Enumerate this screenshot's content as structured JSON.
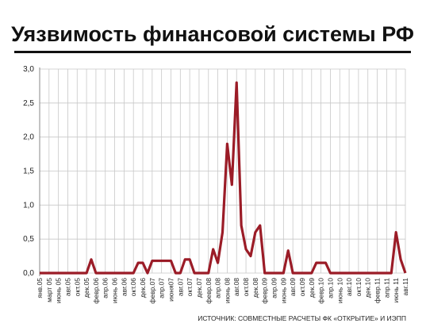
{
  "chart_data": {
    "type": "line",
    "title": "Уязвимость финансовой системы РФ",
    "source": "ИСТОЧНИК: СОВМЕСТНЫЕ РАСЧЕТЫ ФК «ОТКРЫТИЕ» И ИЭПП",
    "categories": [
      "янв.05",
      null,
      "март 05",
      null,
      "июнь 05",
      null,
      "авг.05",
      null,
      "окт.05",
      null,
      "дек.05",
      null,
      "февр.06",
      null,
      "апр.06",
      null,
      "июнь 06",
      null,
      "авг.06",
      null,
      "окт.06",
      null,
      "дек.06",
      null,
      "февр.07",
      null,
      "апр.07",
      null,
      "июня07",
      null,
      "авг.07",
      null,
      "окт.07",
      null,
      "дек.07",
      null,
      "февр.08",
      null,
      "апр.08",
      null,
      "июнь 08",
      null,
      "авг.08",
      null,
      "окт.08",
      null,
      "дек.08",
      null,
      "февр.09",
      null,
      "апр.09",
      null,
      "июнь 09",
      null,
      "авг.09",
      null,
      "окт.09",
      null,
      "дек.09",
      null,
      "февр.10",
      null,
      "апр.10",
      null,
      "июнь 10",
      null,
      "авг.10",
      null,
      "окт.10",
      null,
      "дек.10",
      null,
      "февр.11",
      null,
      "апр.11",
      null,
      "июнь 11",
      null,
      "авг.11"
    ],
    "series": [
      {
        "color": "#9b1c27",
        "values": [
          0,
          0,
          0,
          0,
          0,
          0,
          0,
          0,
          0,
          0,
          0,
          0.2,
          0,
          0,
          0,
          0,
          0,
          0,
          0,
          0,
          0,
          0.15,
          0.15,
          0,
          0.18,
          0.18,
          0.18,
          0.18,
          0.18,
          0,
          0,
          0.2,
          0.2,
          0,
          0,
          0,
          0,
          0.35,
          0.15,
          0.6,
          1.9,
          1.3,
          2.8,
          0.7,
          0.35,
          0.25,
          0.6,
          0.7,
          0,
          0,
          0,
          0,
          0,
          0.33,
          0,
          0,
          0,
          0,
          0,
          0.15,
          0.15,
          0.15,
          0,
          0,
          0,
          0,
          0,
          0,
          0,
          0,
          0,
          0,
          0,
          0,
          0,
          0,
          0.6,
          0.2,
          0
        ]
      }
    ],
    "ylim": [
      0,
      3
    ],
    "yticks": [
      {
        "value": 0,
        "label": "0,0"
      },
      {
        "value": 0.5,
        "label": "0,5"
      },
      {
        "value": 1,
        "label": "1,0"
      },
      {
        "value": 1.5,
        "label": "1,5"
      },
      {
        "value": 2,
        "label": "2,0"
      },
      {
        "value": 2.5,
        "label": "2,5"
      },
      {
        "value": 3,
        "label": "3,0"
      }
    ],
    "grid": true
  }
}
